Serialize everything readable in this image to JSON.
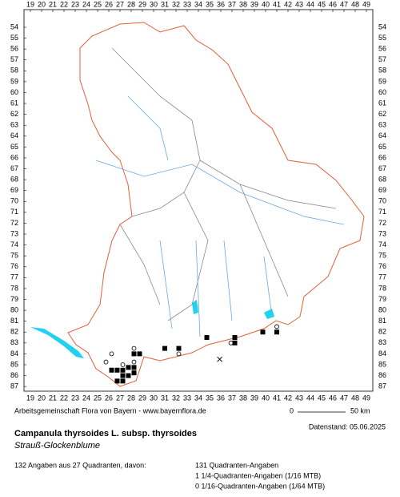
{
  "map": {
    "columns": [
      19,
      20,
      21,
      22,
      23,
      24,
      25,
      26,
      27,
      28,
      29,
      30,
      31,
      32,
      33,
      34,
      35,
      36,
      37,
      38,
      39,
      40,
      41,
      42,
      43,
      44,
      45,
      46,
      47,
      48,
      49
    ],
    "rows": [
      54,
      55,
      56,
      57,
      58,
      59,
      60,
      61,
      62,
      63,
      64,
      65,
      66,
      67,
      68,
      69,
      70,
      71,
      72,
      73,
      74,
      75,
      76,
      77,
      78,
      79,
      80,
      81,
      82,
      83,
      84,
      85,
      86,
      87
    ],
    "markers": [
      {
        "col": 39.75,
        "row": 82,
        "symbol": "square"
      },
      {
        "col": 41,
        "row": 82,
        "symbol": "square"
      },
      {
        "col": 41,
        "row": 81.5,
        "symbol": "circle"
      },
      {
        "col": 37.25,
        "row": 82.5,
        "symbol": "square"
      },
      {
        "col": 37.25,
        "row": 83,
        "symbol": "square"
      },
      {
        "col": 36.9,
        "row": 83,
        "symbol": "circle"
      },
      {
        "col": 34.75,
        "row": 82.5,
        "symbol": "square"
      },
      {
        "col": 32.25,
        "row": 83.5,
        "symbol": "square"
      },
      {
        "col": 32.25,
        "row": 84,
        "symbol": "circle"
      },
      {
        "col": 31,
        "row": 83.5,
        "symbol": "square"
      },
      {
        "col": 28.75,
        "row": 84,
        "symbol": "square"
      },
      {
        "col": 28.25,
        "row": 84,
        "symbol": "square"
      },
      {
        "col": 28.25,
        "row": 83.5,
        "symbol": "circle"
      },
      {
        "col": 26.25,
        "row": 84,
        "symbol": "circle"
      },
      {
        "col": 25.75,
        "row": 84.75,
        "symbol": "circle"
      },
      {
        "col": 28.25,
        "row": 84.75,
        "symbol": "circle"
      },
      {
        "col": 27.75,
        "row": 85.25,
        "symbol": "square"
      },
      {
        "col": 28.25,
        "row": 85.25,
        "symbol": "square"
      },
      {
        "col": 26.25,
        "row": 85.5,
        "symbol": "square"
      },
      {
        "col": 26.75,
        "row": 85.5,
        "symbol": "square"
      },
      {
        "col": 27.25,
        "row": 85.5,
        "symbol": "square"
      },
      {
        "col": 28.25,
        "row": 85.75,
        "symbol": "square"
      },
      {
        "col": 27.25,
        "row": 85,
        "symbol": "circle"
      },
      {
        "col": 27.75,
        "row": 86,
        "symbol": "square"
      },
      {
        "col": 27.25,
        "row": 86,
        "symbol": "square"
      },
      {
        "col": 26.75,
        "row": 86.5,
        "symbol": "square"
      },
      {
        "col": 27.25,
        "row": 86.5,
        "symbol": "square"
      },
      {
        "col": 35.9,
        "row": 84.5,
        "symbol": "cross"
      }
    ]
  },
  "footer": {
    "credit": "Arbeitsgemeinschaft Flora von Bayern - www.bayernflora.de",
    "scale_start": "0",
    "scale_end": "50 km",
    "date": "Datenstand: 05.06.2025",
    "species": "Campanula thyrsoides L. subsp. thyrsoides",
    "common_name": "Strauß-Glockenblume",
    "summary": "132 Angaben aus 27 Quadranten, davon:",
    "details": [
      "131 Quadranten-Angaben",
      "1 1/4-Quadranten-Angaben (1/16 MTB)",
      "0 1/16-Quadranten-Angaben (1/64 MTB)"
    ]
  }
}
